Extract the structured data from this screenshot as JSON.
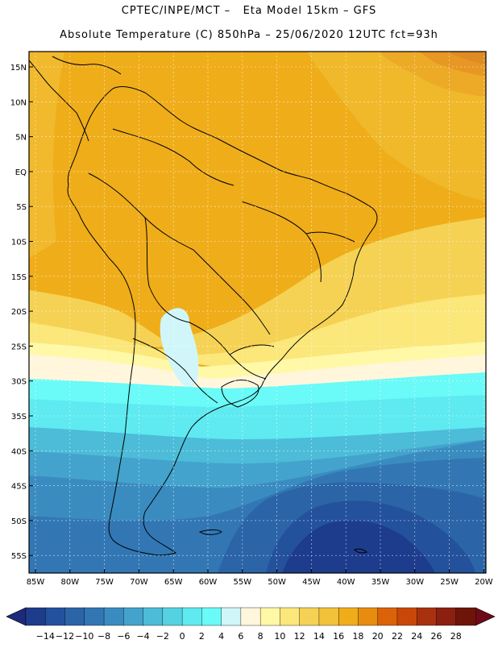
{
  "header": {
    "line1": "CPTEC/INPE/MCT –   Eta Model 15km – GFS",
    "line2": "Absolute Temperature (C) 850hPa – 25/06/2020 12UTC fct=93h"
  },
  "map": {
    "lat_labels": [
      "15N",
      "10N",
      "5N",
      "EQ",
      "5S",
      "10S",
      "15S",
      "20S",
      "25S",
      "30S",
      "35S",
      "40S",
      "45S",
      "50S",
      "55S"
    ],
    "lon_labels": [
      "85W",
      "80W",
      "75W",
      "70W",
      "65W",
      "60W",
      "55W",
      "50W",
      "45W",
      "40W",
      "35W",
      "30W",
      "25W",
      "20W"
    ]
  },
  "colorbar": {
    "ticks": [
      "-14",
      "-12",
      "-10",
      "-8",
      "-6",
      "-4",
      "-2",
      "0",
      "2",
      "4",
      "6",
      "8",
      "10",
      "12",
      "14",
      "16",
      "18",
      "20",
      "22",
      "24",
      "26",
      "28"
    ],
    "colors": [
      "#1e3c8c",
      "#24519c",
      "#2b65a8",
      "#3277b4",
      "#3a8cc0",
      "#43a3cc",
      "#4cbcd8",
      "#55d2e2",
      "#5eeaf0",
      "#6afaf8",
      "#d0f6fa",
      "#fff6dc",
      "#fff8a6",
      "#fbe77a",
      "#f5d254",
      "#f1c23a",
      "#efad1a",
      "#e88c10",
      "#dc6208",
      "#c94808",
      "#a83210",
      "#8c2010",
      "#6e1408"
    ],
    "low_arrow_color": "#1e2a7a",
    "high_arrow_color": "#6e0a1a"
  },
  "colors": {
    "ocean_warm": "#efad1a",
    "land_warm": "#e8a220"
  }
}
